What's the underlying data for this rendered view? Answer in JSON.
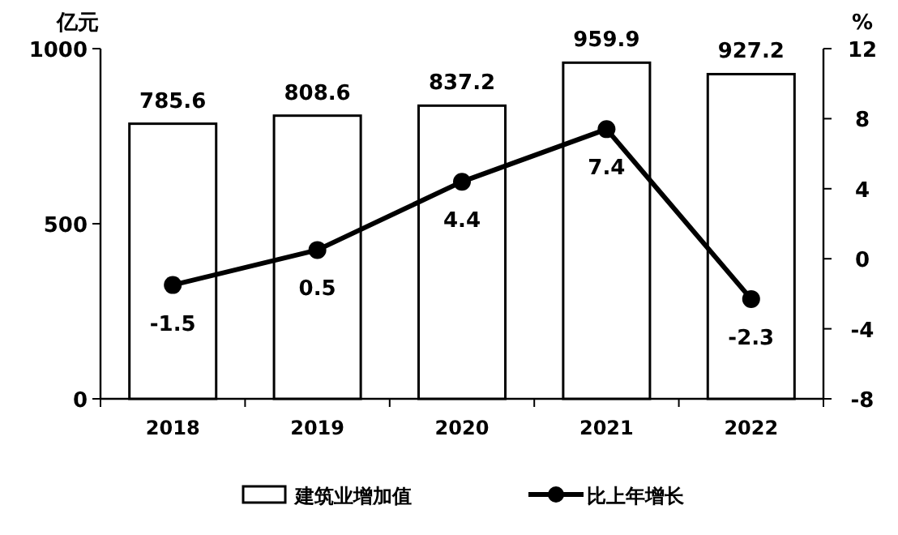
{
  "chart_data": {
    "type": "bar",
    "categories": [
      "2018",
      "2019",
      "2020",
      "2021",
      "2022"
    ],
    "series": [
      {
        "name": "建筑业增加值",
        "color": "#ffffff",
        "values": [
          785.6,
          808.6,
          837.2,
          959.9,
          927.2
        ]
      },
      {
        "name": "比上年增长",
        "type": "line",
        "axis": "y2",
        "color": "#000000",
        "values": [
          -1.5,
          0.5,
          4.4,
          7.4,
          -2.3
        ]
      }
    ],
    "ylabel": "亿元",
    "y2label": "%",
    "ylim": [
      0,
      1000
    ],
    "yticks": [
      0,
      500,
      1000
    ],
    "y2lim": [
      -8,
      12
    ],
    "y2ticks": [
      -8,
      -4,
      0,
      4,
      8,
      12
    ],
    "data_labels": true,
    "legend": "bottom",
    "marker": "circle",
    "grid": false
  }
}
